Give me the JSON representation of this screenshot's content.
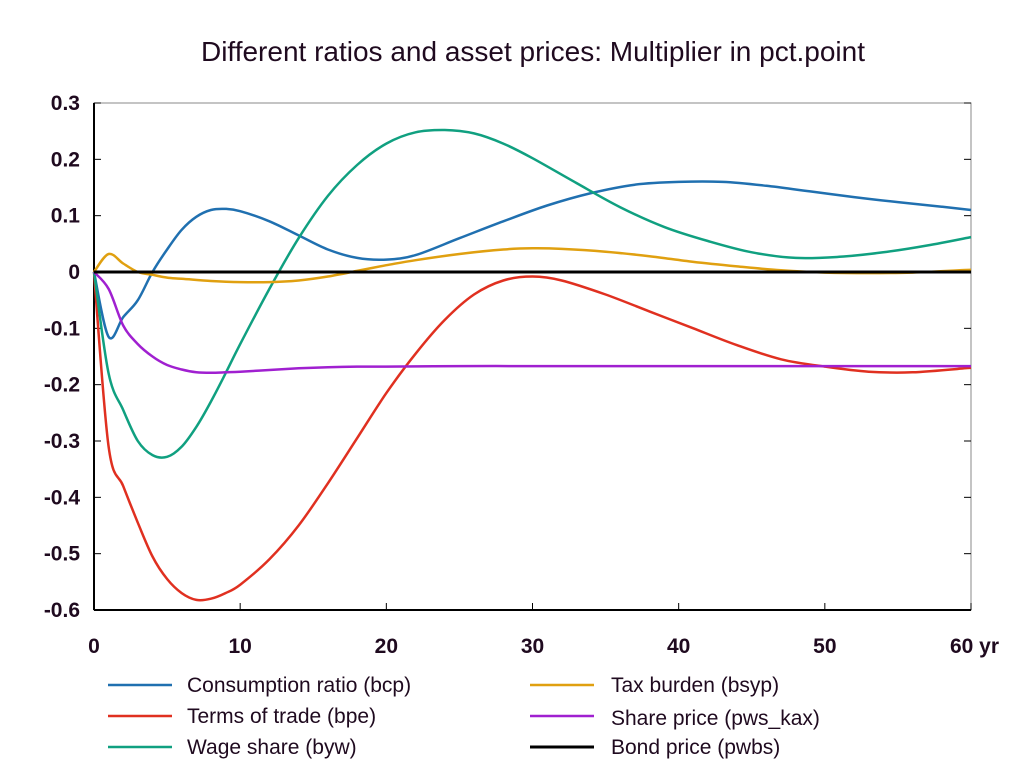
{
  "chart_data": {
    "type": "line",
    "title": "Different ratios and asset prices: Multiplier in pct.point",
    "xlim": [
      0,
      60
    ],
    "ylim": [
      -0.6,
      0.3
    ],
    "x_ticks": [
      0,
      10,
      20,
      30,
      40,
      50,
      60
    ],
    "x_tick_labels": [
      "0",
      "10",
      "20",
      "30",
      "40",
      "50",
      "60 yr"
    ],
    "y_ticks": [
      0.3,
      0.2,
      0.1,
      0,
      -0.1,
      -0.2,
      -0.3,
      -0.4,
      -0.5,
      -0.6
    ],
    "y_tick_labels": [
      "0.3",
      "0.2",
      "0.1",
      "0",
      "-0.1",
      "-0.2",
      "-0.3",
      "-0.4",
      "-0.5",
      "-0.6"
    ],
    "grid": false,
    "legend_position": "bottom",
    "series": [
      {
        "name": "Consumption ratio (bcp)",
        "color": "#2070b0",
        "x": [
          0,
          1,
          2,
          3,
          4,
          5,
          6,
          7,
          8,
          9,
          10,
          12,
          14,
          16,
          18,
          20,
          22,
          25,
          28,
          31,
          34,
          37,
          40,
          43,
          46,
          49,
          52,
          55,
          58,
          60
        ],
        "y": [
          0,
          -0.115,
          -0.08,
          -0.05,
          0.0,
          0.04,
          0.075,
          0.098,
          0.11,
          0.112,
          0.108,
          0.09,
          0.065,
          0.04,
          0.025,
          0.022,
          0.03,
          0.06,
          0.09,
          0.118,
          0.14,
          0.155,
          0.16,
          0.16,
          0.153,
          0.143,
          0.133,
          0.124,
          0.116,
          0.11
        ]
      },
      {
        "name": "Terms of trade (bpe)",
        "color": "#e03020",
        "x": [
          0,
          1,
          2,
          3,
          4,
          5,
          6,
          7,
          8,
          9,
          10,
          12,
          14,
          16,
          18,
          20,
          22,
          24,
          26,
          28,
          30,
          32,
          35,
          38,
          41,
          44,
          47,
          50,
          53,
          56,
          60
        ],
        "y": [
          0,
          -0.31,
          -0.38,
          -0.445,
          -0.505,
          -0.545,
          -0.57,
          -0.582,
          -0.58,
          -0.57,
          -0.555,
          -0.51,
          -0.45,
          -0.375,
          -0.295,
          -0.215,
          -0.145,
          -0.085,
          -0.04,
          -0.015,
          -0.008,
          -0.015,
          -0.04,
          -0.07,
          -0.1,
          -0.13,
          -0.155,
          -0.168,
          -0.177,
          -0.178,
          -0.17
        ]
      },
      {
        "name": "Wage share (byw)",
        "color": "#10a080",
        "x": [
          0,
          1,
          2,
          3,
          4,
          5,
          6,
          7,
          8,
          9,
          10,
          12,
          14,
          16,
          18,
          20,
          22,
          24,
          26,
          28,
          30,
          33,
          36,
          39,
          42,
          45,
          48,
          51,
          54,
          57,
          60
        ],
        "y": [
          0,
          -0.18,
          -0.245,
          -0.3,
          -0.325,
          -0.328,
          -0.31,
          -0.275,
          -0.23,
          -0.18,
          -0.128,
          -0.03,
          0.06,
          0.135,
          0.19,
          0.228,
          0.248,
          0.252,
          0.246,
          0.228,
          0.202,
          0.158,
          0.115,
          0.08,
          0.055,
          0.035,
          0.025,
          0.027,
          0.035,
          0.047,
          0.062
        ]
      },
      {
        "name": "Tax burden (bsyp)",
        "color": "#e0a010",
        "x": [
          0,
          1,
          2,
          3,
          4,
          5,
          6,
          8,
          10,
          12,
          14,
          16,
          18,
          20,
          22,
          25,
          28,
          30,
          32,
          35,
          38,
          41,
          44,
          47,
          50,
          53,
          56,
          60
        ],
        "y": [
          0,
          0.032,
          0.015,
          0.0,
          -0.005,
          -0.01,
          -0.012,
          -0.016,
          -0.018,
          -0.018,
          -0.015,
          -0.008,
          0.002,
          0.012,
          0.021,
          0.032,
          0.04,
          0.042,
          0.041,
          0.036,
          0.028,
          0.018,
          0.01,
          0.003,
          -0.001,
          -0.002,
          -0.001,
          0.004
        ]
      },
      {
        "name": "Share price (pws_kax)",
        "color": "#a020d0",
        "x": [
          0,
          1,
          2,
          3,
          4,
          5,
          6,
          7,
          8,
          9,
          10,
          12,
          14,
          16,
          18,
          20,
          25,
          30,
          35,
          40,
          45,
          50,
          55,
          60
        ],
        "y": [
          0,
          -0.03,
          -0.095,
          -0.128,
          -0.15,
          -0.165,
          -0.173,
          -0.178,
          -0.179,
          -0.178,
          -0.177,
          -0.174,
          -0.171,
          -0.169,
          -0.168,
          -0.168,
          -0.167,
          -0.167,
          -0.167,
          -0.167,
          -0.167,
          -0.167,
          -0.167,
          -0.167
        ]
      },
      {
        "name": "Bond price (pwbs)",
        "color": "#000000",
        "x": [
          0,
          60
        ],
        "y": [
          0,
          0
        ]
      }
    ]
  }
}
